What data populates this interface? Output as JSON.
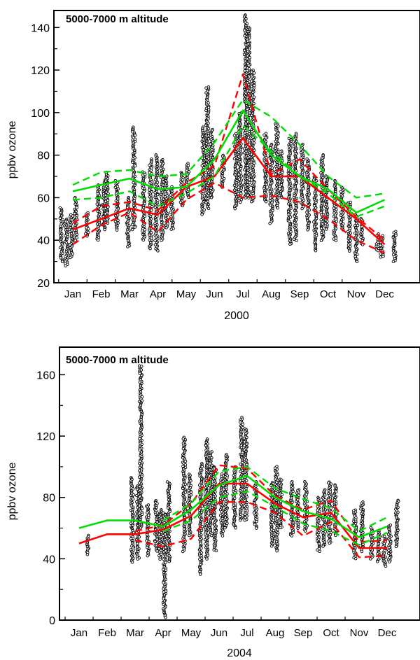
{
  "chart_data": [
    {
      "type": "line",
      "annotation": "5000-7000 m altitude",
      "xlabel": "2000",
      "ylabel": "ppbv ozone",
      "months": [
        "Jan",
        "Feb",
        "Mar",
        "Apr",
        "May",
        "Jun",
        "Jul",
        "Aug",
        "Sep",
        "Oct",
        "Nov",
        "Dec"
      ],
      "ylim": [
        20,
        148
      ],
      "yticks": [
        20,
        40,
        60,
        80,
        100,
        120,
        140
      ],
      "colors": {
        "red": "#ff0000",
        "green": "#00dd00",
        "points": "#000000"
      },
      "series": [
        {
          "color": "red",
          "style": "solid",
          "x": [
            1,
            3,
            4,
            5,
            6,
            7,
            8,
            9,
            10,
            11,
            12
          ],
          "values": [
            45,
            55,
            52,
            65,
            70,
            88,
            70,
            70,
            60,
            50,
            38
          ]
        },
        {
          "color": "red",
          "style": "dashed",
          "x": [
            1,
            2,
            3,
            4,
            5,
            6,
            7,
            8,
            9,
            10,
            11,
            12
          ],
          "values": [
            48,
            56,
            58,
            54,
            67,
            75,
            118,
            71,
            78,
            64,
            51,
            40
          ]
        },
        {
          "color": "red",
          "style": "dashed",
          "x": [
            1,
            2,
            3,
            4,
            5,
            6,
            7,
            8,
            9,
            10,
            11,
            12
          ],
          "values": [
            38,
            47,
            53,
            44,
            59,
            67,
            60,
            61,
            58,
            50,
            40,
            34
          ]
        },
        {
          "color": "green",
          "style": "solid",
          "x": [
            1,
            3,
            4,
            5,
            6,
            7,
            8,
            9,
            10,
            11,
            12
          ],
          "values": [
            63,
            69,
            64,
            65,
            78,
            101,
            80,
            70,
            64,
            53,
            59
          ]
        },
        {
          "color": "green",
          "style": "dashed",
          "x": [
            1,
            2,
            3,
            4,
            5,
            6,
            7,
            8,
            9,
            10,
            11,
            12
          ],
          "values": [
            66,
            72,
            73,
            70,
            71,
            86,
            106,
            98,
            85,
            70,
            60,
            62
          ]
        },
        {
          "color": "green",
          "style": "dashed",
          "x": [
            1,
            2,
            3,
            4,
            5,
            6,
            7,
            8,
            9,
            10,
            11,
            12
          ],
          "values": [
            59,
            60,
            63,
            56,
            62,
            70,
            94,
            82,
            70,
            62,
            51,
            56
          ]
        }
      ],
      "clusters": [
        {
          "x": 0.6,
          "range": [
            30,
            55
          ]
        },
        {
          "x": 0.78,
          "range": [
            28,
            50
          ]
        },
        {
          "x": 0.95,
          "range": [
            32,
            52
          ]
        },
        {
          "x": 1.1,
          "range": [
            40,
            60
          ]
        },
        {
          "x": 1.5,
          "range": [
            42,
            53
          ]
        },
        {
          "x": 1.9,
          "range": [
            40,
            66
          ]
        },
        {
          "x": 2.1,
          "range": [
            45,
            68
          ]
        },
        {
          "x": 2.2,
          "range": [
            48,
            72
          ]
        },
        {
          "x": 2.55,
          "range": [
            45,
            68
          ]
        },
        {
          "x": 2.95,
          "range": [
            37,
            60
          ]
        },
        {
          "x": 3.15,
          "range": [
            45,
            93
          ]
        },
        {
          "x": 3.5,
          "range": [
            40,
            72
          ]
        },
        {
          "x": 3.75,
          "range": [
            36,
            78
          ]
        },
        {
          "x": 3.95,
          "range": [
            35,
            80
          ]
        },
        {
          "x": 4.15,
          "range": [
            40,
            78
          ]
        },
        {
          "x": 4.3,
          "range": [
            46,
            70
          ]
        },
        {
          "x": 4.5,
          "range": [
            45,
            65
          ]
        },
        {
          "x": 4.85,
          "range": [
            56,
            72
          ]
        },
        {
          "x": 5.05,
          "range": [
            60,
            76
          ]
        },
        {
          "x": 5.6,
          "range": [
            52,
            93
          ]
        },
        {
          "x": 5.75,
          "range": [
            55,
            112
          ]
        },
        {
          "x": 5.9,
          "range": [
            60,
            92
          ]
        },
        {
          "x": 6.3,
          "range": [
            65,
            80
          ]
        },
        {
          "x": 6.75,
          "range": [
            55,
            90
          ]
        },
        {
          "x": 6.9,
          "range": [
            58,
            100
          ]
        },
        {
          "x": 7.1,
          "range": [
            60,
            146
          ]
        },
        {
          "x": 7.2,
          "range": [
            60,
            140
          ]
        },
        {
          "x": 7.35,
          "range": [
            58,
            120
          ]
        },
        {
          "x": 7.8,
          "range": [
            58,
            90
          ]
        },
        {
          "x": 8.0,
          "range": [
            48,
            85
          ]
        },
        {
          "x": 8.2,
          "range": [
            55,
            95
          ]
        },
        {
          "x": 8.35,
          "range": [
            60,
            82
          ]
        },
        {
          "x": 8.65,
          "range": [
            38,
            88
          ]
        },
        {
          "x": 8.85,
          "range": [
            40,
            90
          ]
        },
        {
          "x": 9.1,
          "range": [
            55,
            85
          ]
        },
        {
          "x": 9.3,
          "range": [
            45,
            78
          ]
        },
        {
          "x": 9.55,
          "range": [
            35,
            70
          ]
        },
        {
          "x": 9.8,
          "range": [
            40,
            80
          ]
        },
        {
          "x": 9.95,
          "range": [
            45,
            70
          ]
        },
        {
          "x": 10.25,
          "range": [
            40,
            68
          ]
        },
        {
          "x": 10.5,
          "range": [
            45,
            65
          ]
        },
        {
          "x": 10.75,
          "range": [
            35,
            58
          ]
        },
        {
          "x": 11.0,
          "range": [
            30,
            52
          ]
        },
        {
          "x": 11.2,
          "range": [
            38,
            50
          ]
        },
        {
          "x": 11.75,
          "range": [
            35,
            43
          ]
        },
        {
          "x": 11.9,
          "range": [
            32,
            42
          ]
        },
        {
          "x": 12.35,
          "range": [
            30,
            44
          ]
        }
      ]
    },
    {
      "type": "line",
      "annotation": "5000-7000 m altitude",
      "xlabel": "2004",
      "ylabel": "ppbv ozone",
      "months": [
        "Jan",
        "Feb",
        "Mar",
        "Apr",
        "May",
        "Jun",
        "Jul",
        "Aug",
        "Sep",
        "Oct",
        "Nov",
        "Dec"
      ],
      "ylim": [
        0,
        178
      ],
      "yticks": [
        0,
        40,
        80,
        120,
        160
      ],
      "colors": {
        "red": "#ff0000",
        "green": "#00dd00",
        "points": "#000000"
      },
      "series": [
        {
          "color": "red",
          "style": "solid",
          "x": [
            1,
            2,
            3,
            4,
            5,
            6,
            7,
            8,
            9,
            10,
            11,
            12
          ],
          "values": [
            50,
            56,
            56,
            59,
            68,
            89,
            89,
            76,
            67,
            70,
            47,
            47
          ]
        },
        {
          "color": "red",
          "style": "dashed",
          "x": [
            3,
            4,
            5,
            6,
            7,
            8,
            9,
            10,
            11,
            12
          ],
          "values": [
            58,
            62,
            76,
            101,
            99,
            81,
            72,
            78,
            51,
            52
          ]
        },
        {
          "color": "red",
          "style": "dashed",
          "x": [
            3,
            4,
            5,
            6,
            7,
            8,
            9,
            10,
            11,
            12
          ],
          "values": [
            52,
            48,
            53,
            77,
            77,
            70,
            55,
            64,
            41,
            42
          ]
        },
        {
          "color": "green",
          "style": "solid",
          "x": [
            1,
            2,
            3,
            4,
            5,
            6,
            7,
            8,
            9,
            10,
            11,
            12
          ],
          "values": [
            60,
            65,
            65,
            61,
            72,
            88,
            94,
            80,
            71,
            66,
            54,
            61
          ]
        },
        {
          "color": "green",
          "style": "dashed",
          "x": [
            4,
            5,
            6,
            7,
            8,
            9,
            10,
            11,
            12
          ],
          "values": [
            65,
            76,
            97,
            100,
            86,
            79,
            73,
            58,
            67
          ]
        },
        {
          "color": "green",
          "style": "dashed",
          "x": [
            4,
            5,
            6,
            7,
            8,
            9,
            10,
            11,
            12
          ],
          "values": [
            58,
            65,
            80,
            84,
            74,
            63,
            58,
            49,
            57
          ]
        }
      ],
      "clusters": [
        {
          "x": 1.3,
          "range": [
            43,
            55
          ]
        },
        {
          "x": 2.9,
          "range": [
            38,
            93
          ]
        },
        {
          "x": 3.1,
          "range": [
            40,
            88
          ]
        },
        {
          "x": 3.2,
          "range": [
            60,
            166
          ]
        },
        {
          "x": 3.45,
          "range": [
            42,
            75
          ]
        },
        {
          "x": 3.75,
          "range": [
            45,
            78
          ]
        },
        {
          "x": 3.9,
          "range": [
            40,
            72
          ]
        },
        {
          "x": 4.05,
          "range": [
            2,
            70
          ]
        },
        {
          "x": 4.2,
          "range": [
            38,
            90
          ]
        },
        {
          "x": 4.75,
          "range": [
            45,
            119
          ]
        },
        {
          "x": 4.95,
          "range": [
            55,
            95
          ]
        },
        {
          "x": 5.35,
          "range": [
            30,
            102
          ]
        },
        {
          "x": 5.55,
          "range": [
            40,
            118
          ]
        },
        {
          "x": 5.7,
          "range": [
            55,
            110
          ]
        },
        {
          "x": 5.85,
          "range": [
            45,
            100
          ]
        },
        {
          "x": 6.1,
          "range": [
            55,
            95
          ]
        },
        {
          "x": 6.25,
          "range": [
            60,
            108
          ]
        },
        {
          "x": 6.55,
          "range": [
            60,
            100
          ]
        },
        {
          "x": 6.8,
          "range": [
            65,
            132
          ]
        },
        {
          "x": 6.95,
          "range": [
            65,
            125
          ]
        },
        {
          "x": 7.3,
          "range": [
            60,
            90
          ]
        },
        {
          "x": 7.9,
          "range": [
            48,
            90
          ]
        },
        {
          "x": 8.05,
          "range": [
            45,
            100
          ]
        },
        {
          "x": 8.2,
          "range": [
            60,
            92
          ]
        },
        {
          "x": 8.6,
          "range": [
            55,
            90
          ]
        },
        {
          "x": 8.8,
          "range": [
            60,
            85
          ]
        },
        {
          "x": 9.1,
          "range": [
            58,
            90
          ]
        },
        {
          "x": 9.55,
          "range": [
            45,
            80
          ]
        },
        {
          "x": 9.75,
          "range": [
            48,
            85
          ]
        },
        {
          "x": 9.95,
          "range": [
            50,
            90
          ]
        },
        {
          "x": 10.15,
          "range": [
            55,
            88
          ]
        },
        {
          "x": 10.85,
          "range": [
            40,
            72
          ]
        },
        {
          "x": 11.1,
          "range": [
            45,
            77
          ]
        },
        {
          "x": 11.45,
          "range": [
            40,
            60
          ]
        },
        {
          "x": 11.7,
          "range": [
            38,
            58
          ]
        },
        {
          "x": 11.9,
          "range": [
            35,
            55
          ]
        },
        {
          "x": 12.1,
          "range": [
            38,
            62
          ]
        },
        {
          "x": 12.35,
          "range": [
            48,
            78
          ]
        }
      ]
    }
  ]
}
